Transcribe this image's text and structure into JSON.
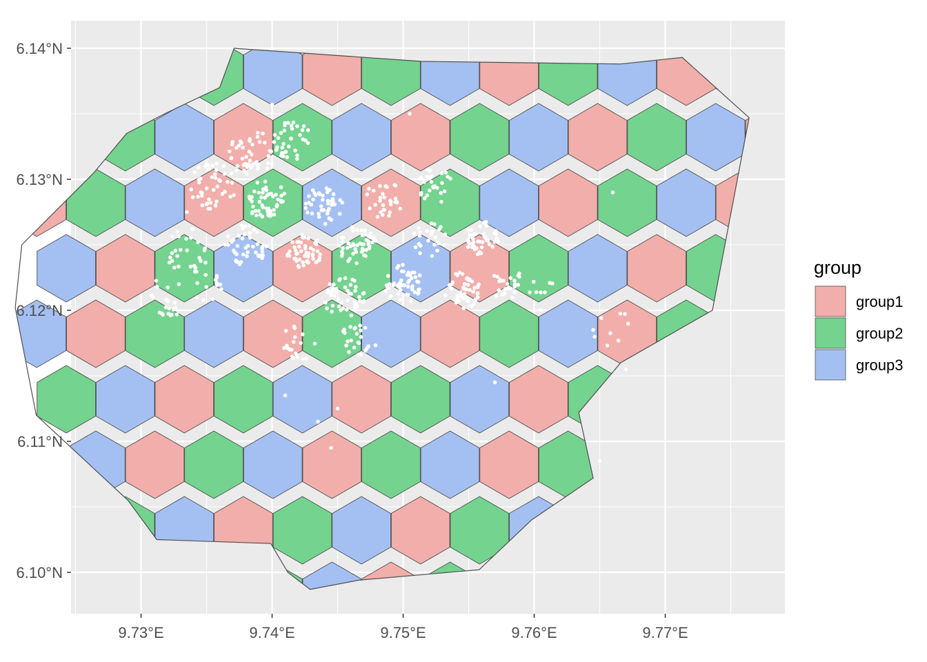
{
  "map": {
    "x_ticks": [
      {
        "value": 9.73,
        "label": "9.73°E"
      },
      {
        "value": 9.74,
        "label": "9.74°E"
      },
      {
        "value": 9.75,
        "label": "9.75°E"
      },
      {
        "value": 9.76,
        "label": "9.76°E"
      },
      {
        "value": 9.77,
        "label": "9.77°E"
      }
    ],
    "y_ticks": [
      {
        "value": 6.1,
        "label": "6.10°N"
      },
      {
        "value": 6.11,
        "label": "6.11°N"
      },
      {
        "value": 6.12,
        "label": "6.12°N"
      },
      {
        "value": 6.13,
        "label": "6.13°N"
      },
      {
        "value": 6.14,
        "label": "6.14°N"
      }
    ],
    "xlim": [
      9.7247,
      9.789
    ],
    "ylim": [
      6.0969,
      6.1416
    ],
    "hex_grid": {
      "origin_lon": 9.731,
      "origin_lat": 6.138,
      "col_step_lon": 0.004505,
      "row_step_lat": 0.005,
      "pattern": "group index = (col + 2*rowIndex) mod 3"
    },
    "boundary": [
      [
        9.7371,
        6.14
      ],
      [
        9.7514,
        6.139
      ],
      [
        9.7666,
        6.1388
      ],
      [
        9.7713,
        6.1393
      ],
      [
        9.7764,
        6.1347
      ],
      [
        9.7736,
        6.12
      ],
      [
        9.7666,
        6.116
      ],
      [
        9.7634,
        6.1122
      ],
      [
        9.7645,
        6.1072
      ],
      [
        9.7598,
        6.104
      ],
      [
        9.7558,
        6.1002
      ],
      [
        9.7466,
        6.0994
      ],
      [
        9.7429,
        6.0987
      ],
      [
        9.7412,
        6.1
      ],
      [
        9.7399,
        6.1022
      ],
      [
        9.7312,
        6.1025
      ],
      [
        9.729,
        6.1055
      ],
      [
        9.722,
        6.112
      ],
      [
        9.7204,
        6.1202
      ],
      [
        9.7209,
        6.125
      ],
      [
        9.7264,
        6.1305
      ],
      [
        9.7289,
        6.1335
      ],
      [
        9.7318,
        6.135
      ],
      [
        9.736,
        6.137
      ]
    ],
    "boundary_lonlat_note": "",
    "groups": [
      {
        "name": "group1",
        "color": "#f1aeaa"
      },
      {
        "name": "group2",
        "color": "#74d38e"
      },
      {
        "name": "group3",
        "color": "#a4c0f2"
      }
    ],
    "colors": {
      "panel_background": "#ebebeb",
      "grid_line": "#ffffff",
      "hex_border": "#4d4d4d",
      "points": "#ffffff"
    },
    "point_clusters": [
      {
        "lon": 9.7385,
        "lat": 6.132,
        "n": 45,
        "spread": 0.0018
      },
      {
        "lon": 9.7415,
        "lat": 6.133,
        "n": 35,
        "spread": 0.0015
      },
      {
        "lon": 9.7355,
        "lat": 6.1295,
        "n": 45,
        "spread": 0.0018
      },
      {
        "lon": 9.7395,
        "lat": 6.1285,
        "n": 50,
        "spread": 0.0015
      },
      {
        "lon": 9.744,
        "lat": 6.128,
        "n": 40,
        "spread": 0.0015
      },
      {
        "lon": 9.7485,
        "lat": 6.1285,
        "n": 30,
        "spread": 0.0015
      },
      {
        "lon": 9.7525,
        "lat": 6.1295,
        "n": 25,
        "spread": 0.0014
      },
      {
        "lon": 9.738,
        "lat": 6.125,
        "n": 45,
        "spread": 0.0016
      },
      {
        "lon": 9.7425,
        "lat": 6.1245,
        "n": 50,
        "spread": 0.0014
      },
      {
        "lon": 9.7465,
        "lat": 6.125,
        "n": 50,
        "spread": 0.0015
      },
      {
        "lon": 9.752,
        "lat": 6.1255,
        "n": 25,
        "spread": 0.0014
      },
      {
        "lon": 9.756,
        "lat": 6.1255,
        "n": 45,
        "spread": 0.0013
      },
      {
        "lon": 9.7335,
        "lat": 6.1245,
        "n": 25,
        "spread": 0.0018
      },
      {
        "lon": 9.7455,
        "lat": 6.121,
        "n": 50,
        "spread": 0.0016
      },
      {
        "lon": 9.75,
        "lat": 6.122,
        "n": 50,
        "spread": 0.0015
      },
      {
        "lon": 9.7545,
        "lat": 6.1215,
        "n": 50,
        "spread": 0.0014
      },
      {
        "lon": 9.758,
        "lat": 6.122,
        "n": 25,
        "spread": 0.0013
      },
      {
        "lon": 9.732,
        "lat": 6.121,
        "n": 20,
        "spread": 0.0016
      },
      {
        "lon": 9.735,
        "lat": 6.122,
        "n": 15,
        "spread": 0.0014
      },
      {
        "lon": 9.742,
        "lat": 6.1175,
        "n": 20,
        "spread": 0.0014
      },
      {
        "lon": 9.7465,
        "lat": 6.1175,
        "n": 25,
        "spread": 0.0015
      },
      {
        "lon": 9.7605,
        "lat": 6.121,
        "n": 8,
        "spread": 0.0015
      },
      {
        "lon": 9.7655,
        "lat": 6.1185,
        "n": 8,
        "spread": 0.002
      }
    ],
    "scattered_points": [
      [
        9.741,
        6.1135
      ],
      [
        9.745,
        6.1125
      ],
      [
        9.7435,
        6.1115
      ],
      [
        9.7445,
        6.1095
      ],
      [
        9.765,
        6.1085
      ],
      [
        9.766,
        6.129
      ],
      [
        9.7645,
        6.1185
      ],
      [
        9.767,
        6.1155
      ],
      [
        9.757,
        6.1145
      ],
      [
        9.7335,
        6.1275
      ],
      [
        9.7505,
        6.135
      ],
      [
        9.74,
        6.1357
      ]
    ]
  },
  "legend": {
    "title": "group",
    "items": [
      {
        "label": "group1",
        "color": "#f1aeaa"
      },
      {
        "label": "group2",
        "color": "#74d38e"
      },
      {
        "label": "group3",
        "color": "#a4c0f2"
      }
    ]
  }
}
